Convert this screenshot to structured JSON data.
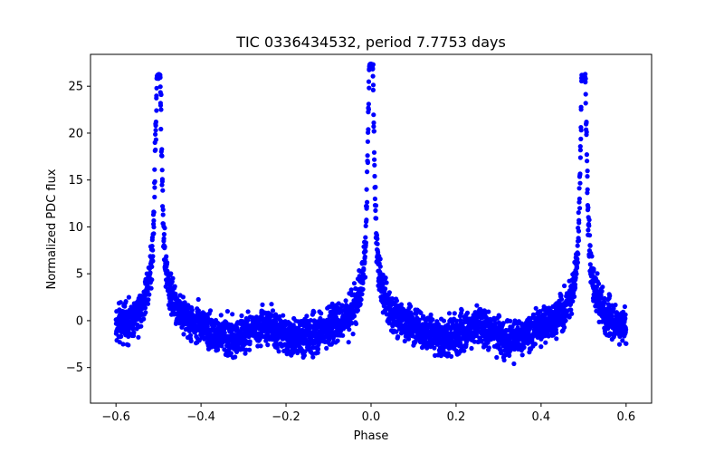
{
  "chart_data": {
    "type": "scatter",
    "title": "TIC 0336434532, period 7.7753 days",
    "xlabel": "Phase",
    "ylabel": "Normalized PDC flux",
    "xlim": [
      -0.66,
      0.66
    ],
    "ylim": [
      -8.8,
      28.4
    ],
    "x_ticks": [
      -0.6,
      -0.4,
      -0.2,
      0.0,
      0.2,
      0.4,
      0.6
    ],
    "x_tick_labels": [
      "−0.6",
      "−0.4",
      "−0.2",
      "0.0",
      "0.2",
      "0.4",
      "0.6"
    ],
    "y_ticks": [
      -5,
      0,
      5,
      10,
      15,
      20,
      25
    ],
    "y_tick_labels": [
      "−5",
      "0",
      "5",
      "10",
      "15",
      "20",
      "25"
    ],
    "grid": false,
    "marker_color": "#0000ff",
    "series": [
      {
        "name": "flux",
        "phase_range": [
          -0.6,
          0.6
        ],
        "peak_phases": [
          -0.5,
          0.0,
          0.5
        ],
        "peak_maxima": [
          26.3,
          27.4,
          26.3
        ],
        "baseline_range": [
          -7.2,
          9.3
        ]
      }
    ]
  }
}
